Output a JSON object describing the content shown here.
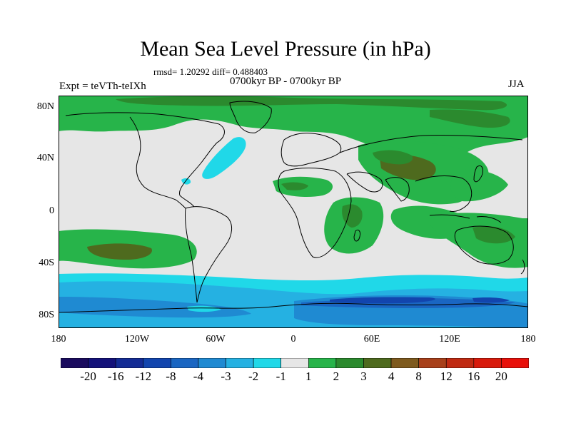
{
  "figure": {
    "title": "Mean Sea Level Pressure (in hPa)",
    "stats": "rmsd= 1.20292 diff= 0.488403",
    "experiment": "Expt = teVTh-teIXh",
    "period": "0700kyr BP - 0700kyr BP",
    "season": "JJA"
  },
  "axes": {
    "y_ticks": [
      "80N",
      "40N",
      "0",
      "40S",
      "80S"
    ],
    "x_ticks": [
      "180",
      "120W",
      "60W",
      "0",
      "60E",
      "120E",
      "180"
    ]
  },
  "colorbar": {
    "labels": [
      "-20",
      "-16",
      "-12",
      "-8",
      "-4",
      "-3",
      "-2",
      "-1",
      "1",
      "2",
      "3",
      "4",
      "8",
      "12",
      "16",
      "20"
    ],
    "colors": [
      "#1a0b5e",
      "#14127a",
      "#142c95",
      "#1245ae",
      "#1a66c2",
      "#1f8ad2",
      "#25b1e2",
      "#20d8e8",
      "#e6e6e6",
      "#27b44a",
      "#2b8a2e",
      "#4e6a1e",
      "#7e5a1e",
      "#a8401a",
      "#c02a12",
      "#d81a0c",
      "#e8100a"
    ]
  },
  "chart_data": {
    "type": "heatmap",
    "title": "Mean Sea Level Pressure (in hPa)",
    "variable_unit": "hPa",
    "lon_range": [
      -180,
      180
    ],
    "lat_range": [
      -90,
      90
    ],
    "levels": [
      -20,
      -16,
      -12,
      -8,
      -4,
      -3,
      -2,
      -1,
      1,
      2,
      3,
      4,
      8,
      12,
      16,
      20
    ],
    "regions": [
      {
        "region": "Arctic 60N-90N",
        "value_range": [
          1,
          3
        ]
      },
      {
        "region": "Central Asia",
        "value_range": [
          3,
          4
        ]
      },
      {
        "region": "North Atlantic (Gulf Stream)",
        "value_range": [
          -2,
          -1
        ]
      },
      {
        "region": "South Pacific ~35S",
        "value_range": [
          2,
          4
        ]
      },
      {
        "region": "Southern Ocean 50S-70S",
        "value_range": [
          -3,
          -1
        ]
      },
      {
        "region": "Antarctica (coast)",
        "value_range": [
          -8,
          -3
        ]
      },
      {
        "region": "Africa / Indian Ocean",
        "value_range": [
          1,
          3
        ]
      }
    ]
  }
}
